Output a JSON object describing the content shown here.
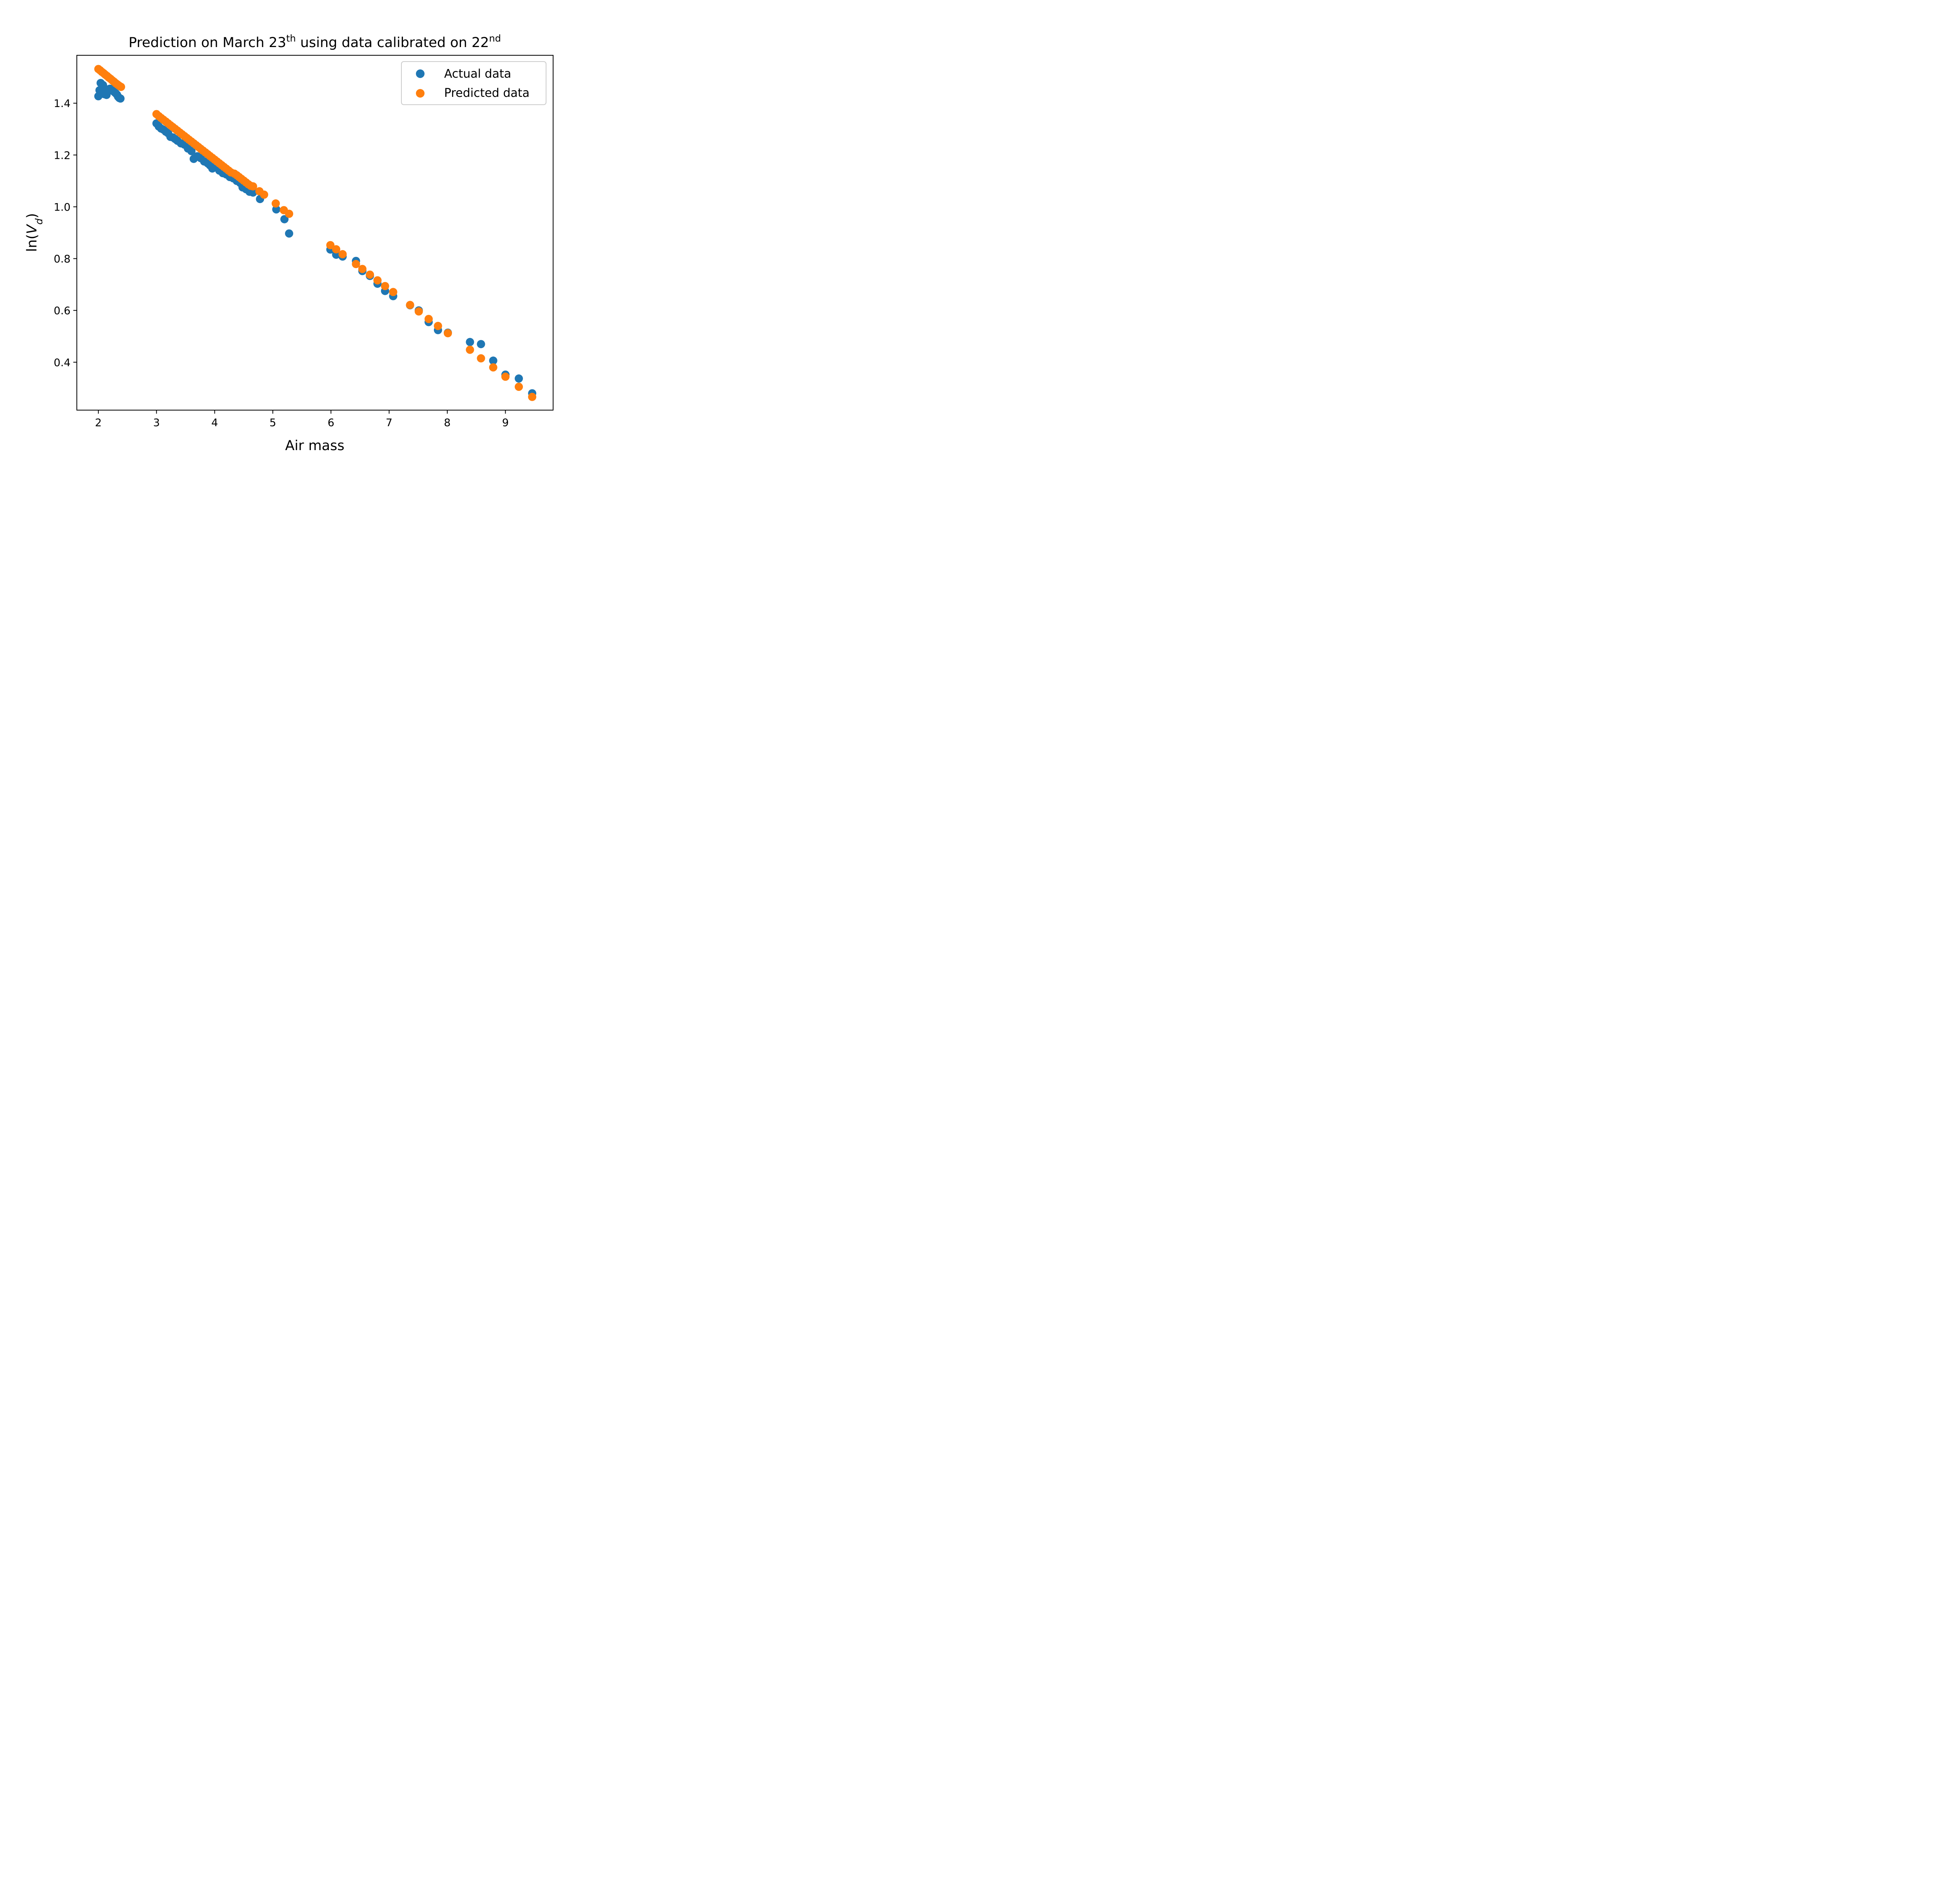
{
  "chart_data": {
    "type": "scatter",
    "title": {
      "prefix": "Prediction on March 23",
      "sup1": "th",
      "middle": " using data calibrated on 22",
      "sup2": "nd"
    },
    "xlabel": "Air mass",
    "ylabel": {
      "prefix": "ln(",
      "var": "V",
      "sub": "d",
      "suffix": ")"
    },
    "xlim": [
      1.63,
      9.82
    ],
    "ylim": [
      0.215,
      1.585
    ],
    "xticks": [
      2,
      3,
      4,
      5,
      6,
      7,
      8,
      9
    ],
    "yticks": [
      0.4,
      0.6,
      0.8,
      1.0,
      1.2,
      1.4
    ],
    "ytick_labels": [
      "0.4",
      "0.6",
      "0.8",
      "1.0",
      "1.2",
      "1.4"
    ],
    "grid": false,
    "legend_position": "top-right",
    "series": [
      {
        "name": "Actual data",
        "color": "#1f77b4",
        "points": [
          [
            2.0,
            1.427
          ],
          [
            2.02,
            1.45
          ],
          [
            2.04,
            1.478
          ],
          [
            2.06,
            1.445
          ],
          [
            2.08,
            1.47
          ],
          [
            2.1,
            1.435
          ],
          [
            2.12,
            1.455
          ],
          [
            2.14,
            1.432
          ],
          [
            2.16,
            1.45
          ],
          [
            2.18,
            1.448
          ],
          [
            2.2,
            1.456
          ],
          [
            2.22,
            1.455
          ],
          [
            2.24,
            1.45
          ],
          [
            2.26,
            1.446
          ],
          [
            2.28,
            1.442
          ],
          [
            2.3,
            1.438
          ],
          [
            2.32,
            1.433
          ],
          [
            2.34,
            1.425
          ],
          [
            2.36,
            1.42
          ],
          [
            2.38,
            1.418
          ],
          [
            3.0,
            1.322
          ],
          [
            3.04,
            1.31
          ],
          [
            3.08,
            1.302
          ],
          [
            3.12,
            1.298
          ],
          [
            3.16,
            1.29
          ],
          [
            3.2,
            1.284
          ],
          [
            3.24,
            1.27
          ],
          [
            3.28,
            1.268
          ],
          [
            3.32,
            1.262
          ],
          [
            3.36,
            1.255
          ],
          [
            3.42,
            1.245
          ],
          [
            3.48,
            1.24
          ],
          [
            3.54,
            1.225
          ],
          [
            3.6,
            1.215
          ],
          [
            3.64,
            1.185
          ],
          [
            3.7,
            1.195
          ],
          [
            3.76,
            1.188
          ],
          [
            3.82,
            1.175
          ],
          [
            3.88,
            1.168
          ],
          [
            3.92,
            1.16
          ],
          [
            3.96,
            1.148
          ],
          [
            4.02,
            1.152
          ],
          [
            4.08,
            1.14
          ],
          [
            4.14,
            1.13
          ],
          [
            4.2,
            1.125
          ],
          [
            4.26,
            1.115
          ],
          [
            4.32,
            1.11
          ],
          [
            4.38,
            1.1
          ],
          [
            4.44,
            1.092
          ],
          [
            4.48,
            1.075
          ],
          [
            4.54,
            1.068
          ],
          [
            4.6,
            1.058
          ],
          [
            4.66,
            1.055
          ],
          [
            4.78,
            1.03
          ],
          [
            5.06,
            0.99
          ],
          [
            5.2,
            0.952
          ],
          [
            5.28,
            0.897
          ],
          [
            5.99,
            0.835
          ],
          [
            6.09,
            0.815
          ],
          [
            6.2,
            0.808
          ],
          [
            6.43,
            0.791
          ],
          [
            6.54,
            0.752
          ],
          [
            6.67,
            0.733
          ],
          [
            6.8,
            0.703
          ],
          [
            6.93,
            0.675
          ],
          [
            7.07,
            0.655
          ],
          [
            7.36,
            0.62
          ],
          [
            7.51,
            0.6
          ],
          [
            7.68,
            0.555
          ],
          [
            7.84,
            0.524
          ],
          [
            8.01,
            0.514
          ],
          [
            8.39,
            0.478
          ],
          [
            8.58,
            0.47
          ],
          [
            8.79,
            0.406
          ],
          [
            9.0,
            0.352
          ],
          [
            9.23,
            0.337
          ],
          [
            9.46,
            0.28
          ]
        ]
      },
      {
        "name": "Predicted data",
        "color": "#ff7f0e",
        "points": [
          [
            2.0,
            1.532
          ],
          [
            2.03,
            1.527
          ],
          [
            2.06,
            1.521
          ],
          [
            2.09,
            1.516
          ],
          [
            2.12,
            1.51
          ],
          [
            2.15,
            1.505
          ],
          [
            2.18,
            1.499
          ],
          [
            2.21,
            1.494
          ],
          [
            2.24,
            1.488
          ],
          [
            2.27,
            1.483
          ],
          [
            2.3,
            1.477
          ],
          [
            2.33,
            1.472
          ],
          [
            2.36,
            1.467
          ],
          [
            2.39,
            1.463
          ],
          [
            3.0,
            1.358
          ],
          [
            3.04,
            1.35
          ],
          [
            3.08,
            1.343
          ],
          [
            3.12,
            1.336
          ],
          [
            3.16,
            1.329
          ],
          [
            3.2,
            1.322
          ],
          [
            3.24,
            1.315
          ],
          [
            3.28,
            1.308
          ],
          [
            3.32,
            1.301
          ],
          [
            3.36,
            1.294
          ],
          [
            3.4,
            1.287
          ],
          [
            3.44,
            1.28
          ],
          [
            3.48,
            1.273
          ],
          [
            3.52,
            1.266
          ],
          [
            3.56,
            1.259
          ],
          [
            3.6,
            1.252
          ],
          [
            3.64,
            1.245
          ],
          [
            3.68,
            1.238
          ],
          [
            3.72,
            1.231
          ],
          [
            3.76,
            1.224
          ],
          [
            3.8,
            1.217
          ],
          [
            3.84,
            1.21
          ],
          [
            3.88,
            1.203
          ],
          [
            3.92,
            1.196
          ],
          [
            3.96,
            1.189
          ],
          [
            4.0,
            1.182
          ],
          [
            4.04,
            1.175
          ],
          [
            4.08,
            1.168
          ],
          [
            4.12,
            1.161
          ],
          [
            4.16,
            1.154
          ],
          [
            4.2,
            1.147
          ],
          [
            4.24,
            1.14
          ],
          [
            4.28,
            1.133
          ],
          [
            4.34,
            1.128
          ],
          [
            4.38,
            1.122
          ],
          [
            4.42,
            1.115
          ],
          [
            4.46,
            1.108
          ],
          [
            4.5,
            1.101
          ],
          [
            4.54,
            1.094
          ],
          [
            4.58,
            1.087
          ],
          [
            4.62,
            1.081
          ],
          [
            4.66,
            1.079
          ],
          [
            4.77,
            1.06
          ],
          [
            4.85,
            1.047
          ],
          [
            5.05,
            1.013
          ],
          [
            5.19,
            0.987
          ],
          [
            5.28,
            0.973
          ],
          [
            5.99,
            0.852
          ],
          [
            6.09,
            0.836
          ],
          [
            6.2,
            0.817
          ],
          [
            6.43,
            0.779
          ],
          [
            6.54,
            0.76
          ],
          [
            6.67,
            0.738
          ],
          [
            6.8,
            0.716
          ],
          [
            6.93,
            0.694
          ],
          [
            7.07,
            0.671
          ],
          [
            7.36,
            0.621
          ],
          [
            7.51,
            0.596
          ],
          [
            7.68,
            0.567
          ],
          [
            7.84,
            0.54
          ],
          [
            8.01,
            0.512
          ],
          [
            8.39,
            0.448
          ],
          [
            8.58,
            0.415
          ],
          [
            8.79,
            0.38
          ],
          [
            9.0,
            0.344
          ],
          [
            9.23,
            0.305
          ],
          [
            9.46,
            0.266
          ]
        ]
      }
    ]
  }
}
